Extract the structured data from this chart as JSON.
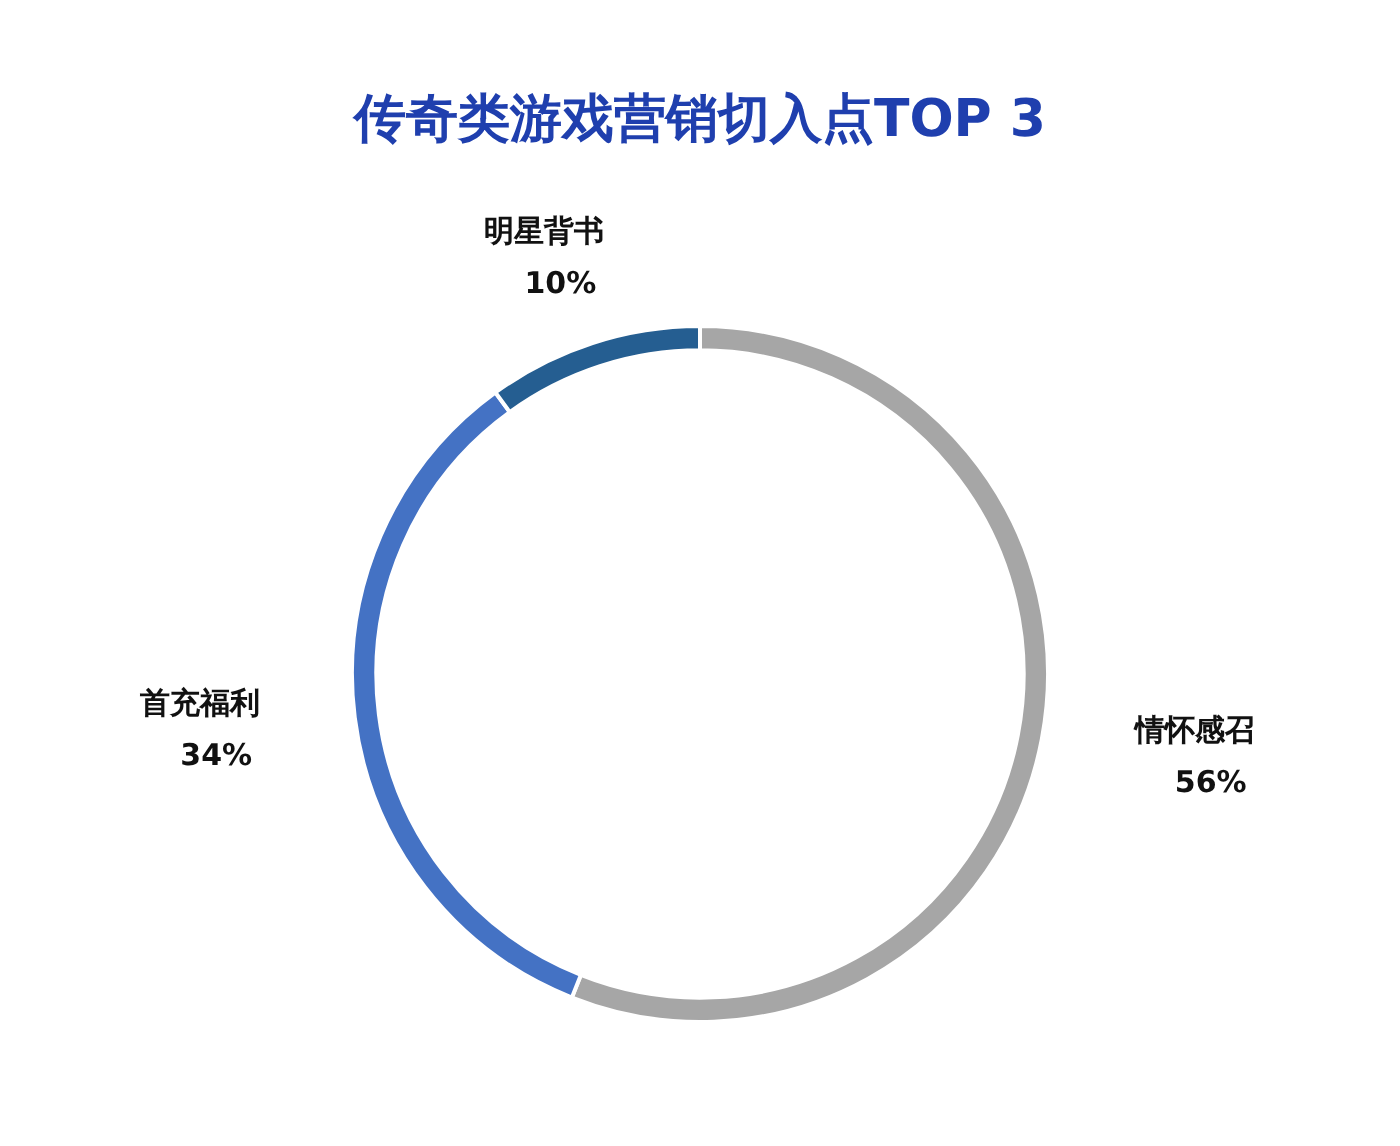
{
  "chart_data": {
    "type": "donut",
    "title": "传奇类游戏营销切入点TOP 3",
    "categories": [
      "情怀感召",
      "首充福利",
      "明星背书"
    ],
    "values": [
      56,
      34,
      10
    ],
    "colors": [
      "#a6a6a6",
      "#4472c4",
      "#255e91"
    ],
    "value_labels": [
      "56%",
      "34%",
      "10%"
    ],
    "legend": false
  }
}
